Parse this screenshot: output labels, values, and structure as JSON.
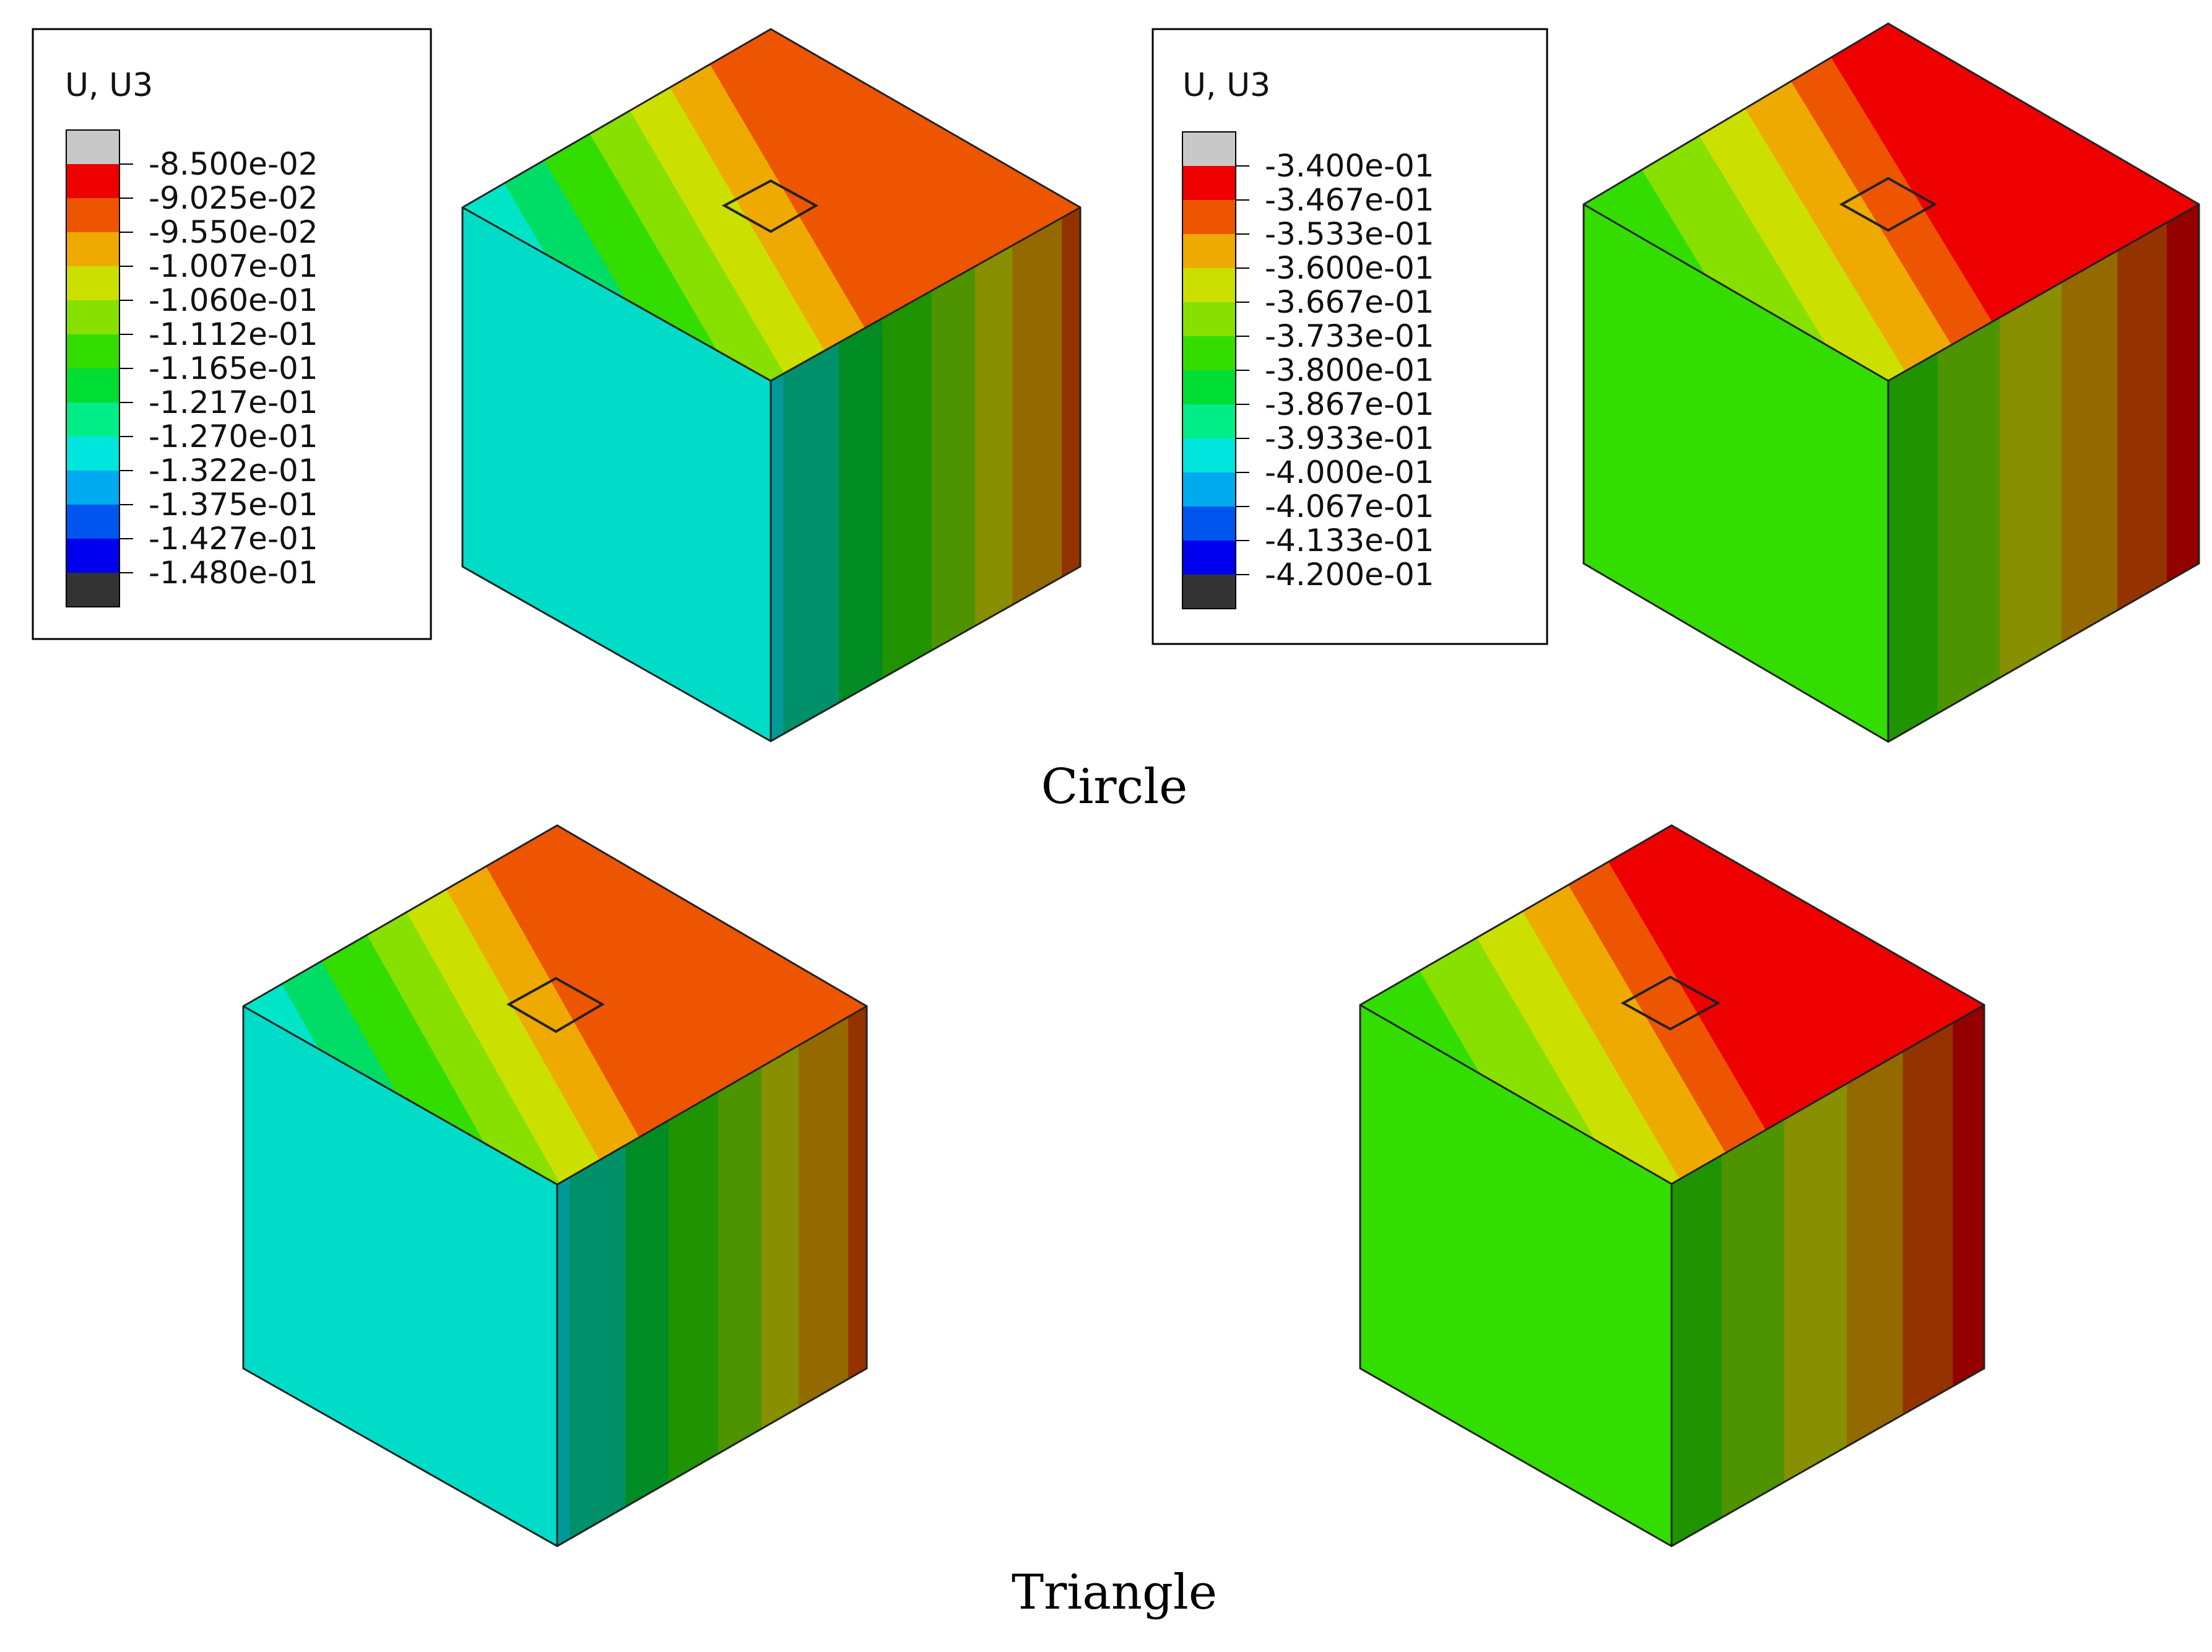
{
  "legends": [
    {
      "title": "U, U3",
      "values": [
        "-8.500e-02",
        "-9.025e-02",
        "-9.550e-02",
        "-1.007e-01",
        "-1.060e-01",
        "-1.112e-01",
        "-1.165e-01",
        "-1.217e-01",
        "-1.270e-01",
        "-1.322e-01",
        "-1.375e-01",
        "-1.427e-01",
        "-1.480e-01"
      ]
    },
    {
      "title": "U, U3",
      "values": [
        "-3.400e-01",
        "-3.467e-01",
        "-3.533e-01",
        "-3.600e-01",
        "-3.667e-01",
        "-3.733e-01",
        "-3.800e-01",
        "-3.867e-01",
        "-3.933e-01",
        "-4.000e-01",
        "-4.067e-01",
        "-4.133e-01",
        "-4.200e-01"
      ]
    }
  ],
  "legend_colors": [
    "#c8c8c8",
    "#ee0000",
    "#ee5500",
    "#eeaa00",
    "#cce000",
    "#88e000",
    "#33dd00",
    "#00dd33",
    "#00ee88",
    "#00e5dd",
    "#00aaee",
    "#0055ee",
    "#0000ee",
    "#333333"
  ],
  "captions": [
    "Circle",
    "Triangle"
  ]
}
